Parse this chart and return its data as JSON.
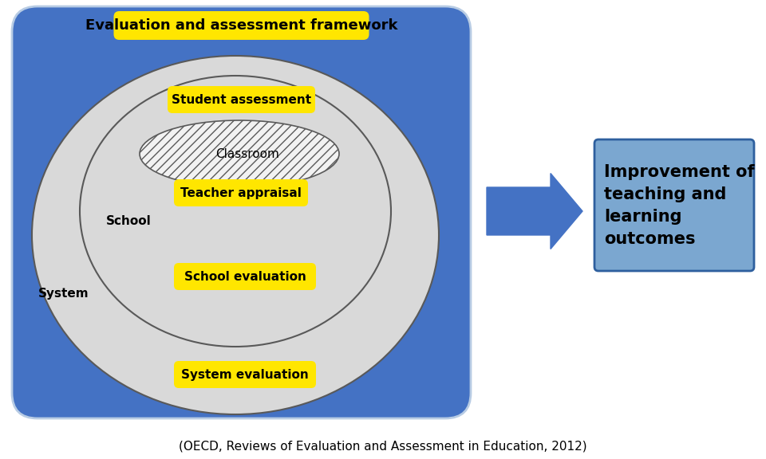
{
  "bg_color": "#ffffff",
  "blue_bg": "#4472C4",
  "blue_bg_edge": "#b8cce4",
  "yellow_box": "#FFE600",
  "ellipse_color": "#D9D9D9",
  "ellipse_edge": "#595959",
  "hatch_color": "#D9D9D9",
  "arrow_color": "#4472C4",
  "outcome_box_facecolor": "#7BA7D0",
  "outcome_box_edgecolor": "#2E5F9E",
  "title_text": "Evaluation and assessment framework",
  "labels": {
    "student_assessment": "Student assessment",
    "classroom": "Classroom",
    "teacher_appraisal": "Teacher appraisal",
    "school": "School",
    "school_evaluation": "School evaluation",
    "system": "System",
    "system_evaluation": "System evaluation",
    "outcome": "Improvement of\nteaching and\nlearning\noutcomes"
  },
  "citation": "(OECD, Reviews of Evaluation and Assessment in Education, 2012)",
  "fontsize_title": 13,
  "fontsize_labels": 11,
  "fontsize_citation": 11,
  "fontsize_outcome": 15
}
